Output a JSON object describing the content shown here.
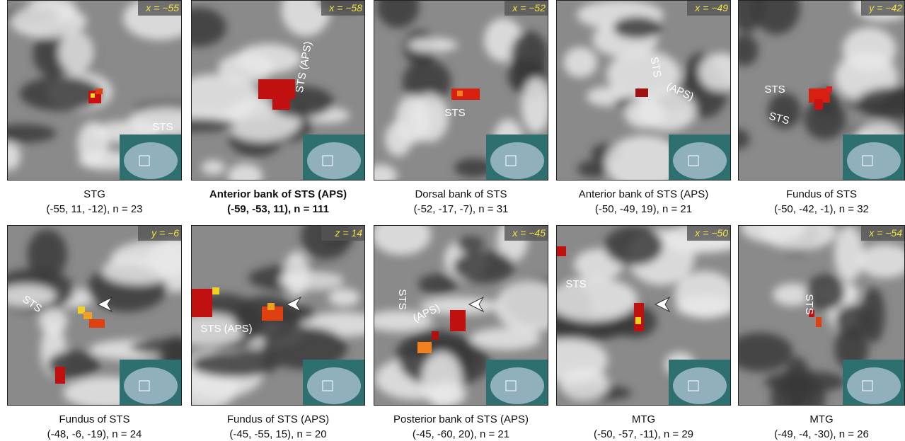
{
  "panels": [
    {
      "coord": "x = −55",
      "region": "STG",
      "stats": "(-55, 11, -12), n = 23",
      "labels": [
        "STS"
      ]
    },
    {
      "coord": "x = −58",
      "region": "Anterior bank of STS (APS)",
      "stats": "(-59, -53, 11), n = 111",
      "labels": [
        "STS (APS)"
      ]
    },
    {
      "coord": "x = −52",
      "region": "Dorsal bank of STS",
      "stats": "(-52, -17, -7), n = 31",
      "labels": [
        "STS"
      ]
    },
    {
      "coord": "x = −49",
      "region": "Anterior bank of STS (APS)",
      "stats": "(-50, -49, 19), n = 21",
      "labels": [
        "STS",
        "(APS)"
      ]
    },
    {
      "coord": "y = −42",
      "region": "Fundus of STS",
      "stats": "(-50, -42, -1), n = 32",
      "labels": [
        "STS",
        "STS"
      ]
    },
    {
      "coord": "y = −6",
      "region": "Fundus of STS",
      "stats": "(-48, -6, -19), n = 24",
      "labels": [
        "STS"
      ]
    },
    {
      "coord": "z = 14",
      "region": "Fundus of STS (APS)",
      "stats": "(-45, -55, 15), n = 20",
      "labels": [
        "STS (APS)"
      ]
    },
    {
      "coord": "x = −45",
      "region": "Posterior bank of STS (APS)",
      "stats": "(-45, -60, 20), n = 21",
      "labels": [
        "STS",
        "(APS)"
      ]
    },
    {
      "coord": "x = −50",
      "region": "MTG",
      "stats": "(-50, -57, -11), n = 29",
      "labels": [
        "STS"
      ]
    },
    {
      "coord": "x = −54",
      "region": "MTG",
      "stats": "(-49, -4, -30), n = 26",
      "labels": [
        "STS"
      ]
    }
  ]
}
